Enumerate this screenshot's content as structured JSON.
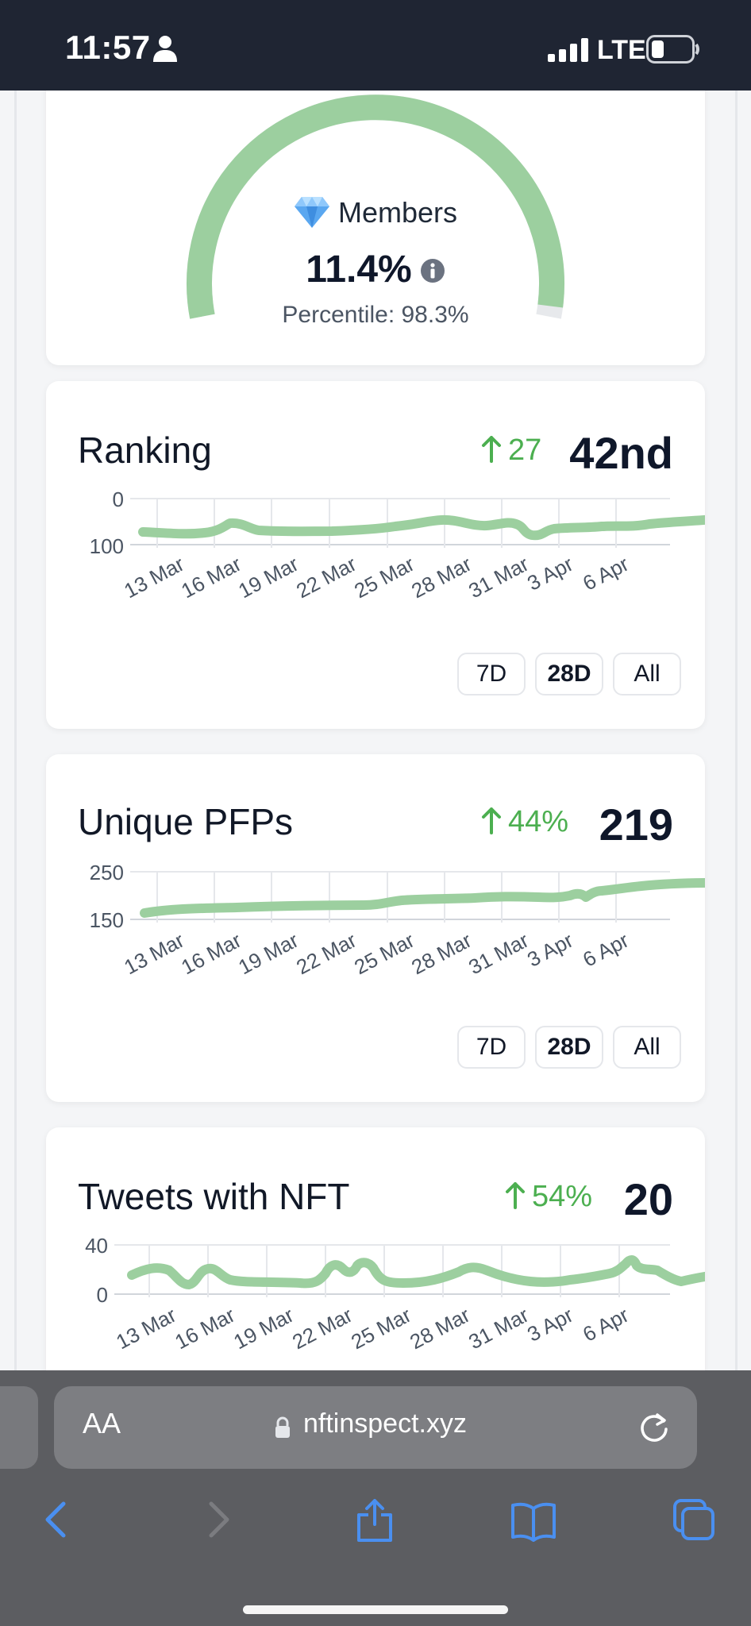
{
  "status_bar": {
    "time": "11:57",
    "network": "LTE",
    "battery": "low"
  },
  "gauge": {
    "label": "Members",
    "value": "11.4%",
    "percentile": "Percentile: 98.3%",
    "fill_fraction": 0.983,
    "color": "#9ccf9f"
  },
  "metrics": [
    {
      "title": "Ranking",
      "change": "27",
      "value": "42nd",
      "y_ticks": [
        "0",
        "100"
      ],
      "x_ticks": [
        "13 Mar",
        "16 Mar",
        "19 Mar",
        "22 Mar",
        "25 Mar",
        "28 Mar",
        "31 Mar",
        "3 Apr",
        "6 Apr"
      ],
      "ranges": [
        "7D",
        "28D",
        "All"
      ],
      "active_range": "28D"
    },
    {
      "title": "Unique PFPs",
      "change": "44%",
      "value": "219",
      "y_ticks": [
        "250",
        "150"
      ],
      "x_ticks": [
        "13 Mar",
        "16 Mar",
        "19 Mar",
        "22 Mar",
        "25 Mar",
        "28 Mar",
        "31 Mar",
        "3 Apr",
        "6 Apr"
      ],
      "ranges": [
        "7D",
        "28D",
        "All"
      ],
      "active_range": "28D"
    },
    {
      "title": "Tweets with NFT",
      "change": "54%",
      "value": "20",
      "y_ticks": [
        "40",
        "0"
      ],
      "x_ticks": [
        "13 Mar",
        "16 Mar",
        "19 Mar",
        "22 Mar",
        "25 Mar",
        "28 Mar",
        "31 Mar",
        "3 Apr",
        "6 Apr"
      ]
    }
  ],
  "browser": {
    "text_size_button": "AA",
    "url": "nftinspect.xyz"
  },
  "colors": {
    "line": "#9ccf9f",
    "positive": "#4caf50",
    "toolbar_icon": "#4a8ff0"
  }
}
